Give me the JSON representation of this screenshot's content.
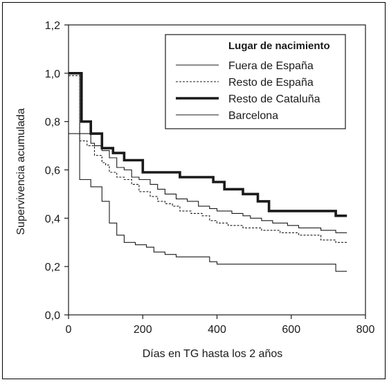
{
  "chart_data": {
    "type": "line",
    "subtype": "step",
    "xlabel": "Días en TG hasta los 2 años",
    "ylabel": "Supervivencia acumulada",
    "xlim": [
      0,
      800
    ],
    "ylim": [
      0,
      1.2
    ],
    "x_ticks": [
      0,
      200,
      400,
      600,
      800
    ],
    "x_tick_labels": [
      "0",
      "200",
      "400",
      "600",
      "800"
    ],
    "y_ticks": [
      0,
      0.2,
      0.4,
      0.6,
      0.8,
      1.0,
      1.2
    ],
    "y_tick_labels": [
      "0,0",
      "0,2",
      "0,4",
      "0,6",
      "0,8",
      "1,0",
      "1,2"
    ],
    "grid": false,
    "legend": {
      "title": "Lugar de nacimiento",
      "position": "top-right"
    },
    "series": [
      {
        "name": "Fuera de España",
        "style": "thin-solid",
        "color": "#1a1a1a",
        "points": [
          [
            0,
            1.0
          ],
          [
            30,
            1.0
          ],
          [
            30,
            0.75
          ],
          [
            60,
            0.75
          ],
          [
            60,
            0.71
          ],
          [
            70,
            0.71
          ],
          [
            70,
            0.7
          ],
          [
            90,
            0.7
          ],
          [
            90,
            0.68
          ],
          [
            110,
            0.68
          ],
          [
            110,
            0.65
          ],
          [
            130,
            0.65
          ],
          [
            130,
            0.61
          ],
          [
            150,
            0.61
          ],
          [
            150,
            0.6
          ],
          [
            170,
            0.6
          ],
          [
            170,
            0.57
          ],
          [
            190,
            0.57
          ],
          [
            190,
            0.56
          ],
          [
            220,
            0.56
          ],
          [
            220,
            0.54
          ],
          [
            240,
            0.54
          ],
          [
            240,
            0.52
          ],
          [
            260,
            0.52
          ],
          [
            260,
            0.5
          ],
          [
            290,
            0.5
          ],
          [
            290,
            0.48
          ],
          [
            320,
            0.48
          ],
          [
            320,
            0.47
          ],
          [
            350,
            0.47
          ],
          [
            350,
            0.45
          ],
          [
            380,
            0.45
          ],
          [
            380,
            0.44
          ],
          [
            400,
            0.44
          ],
          [
            400,
            0.43
          ],
          [
            440,
            0.43
          ],
          [
            440,
            0.42
          ],
          [
            470,
            0.42
          ],
          [
            470,
            0.41
          ],
          [
            490,
            0.41
          ],
          [
            490,
            0.4
          ],
          [
            520,
            0.4
          ],
          [
            520,
            0.39
          ],
          [
            550,
            0.39
          ],
          [
            550,
            0.38
          ],
          [
            590,
            0.38
          ],
          [
            590,
            0.37
          ],
          [
            620,
            0.37
          ],
          [
            620,
            0.36
          ],
          [
            680,
            0.36
          ],
          [
            680,
            0.35
          ],
          [
            720,
            0.35
          ],
          [
            720,
            0.34
          ],
          [
            750,
            0.34
          ]
        ]
      },
      {
        "name": "Resto de España",
        "style": "dashed",
        "color": "#1a1a1a",
        "points": [
          [
            0,
            0.99
          ],
          [
            30,
            0.99
          ],
          [
            30,
            0.72
          ],
          [
            50,
            0.72
          ],
          [
            50,
            0.7
          ],
          [
            70,
            0.7
          ],
          [
            70,
            0.66
          ],
          [
            90,
            0.66
          ],
          [
            90,
            0.63
          ],
          [
            100,
            0.63
          ],
          [
            100,
            0.62
          ],
          [
            110,
            0.62
          ],
          [
            110,
            0.59
          ],
          [
            130,
            0.59
          ],
          [
            130,
            0.57
          ],
          [
            150,
            0.57
          ],
          [
            150,
            0.56
          ],
          [
            170,
            0.56
          ],
          [
            170,
            0.54
          ],
          [
            190,
            0.54
          ],
          [
            190,
            0.51
          ],
          [
            220,
            0.51
          ],
          [
            220,
            0.49
          ],
          [
            240,
            0.49
          ],
          [
            240,
            0.47
          ],
          [
            260,
            0.47
          ],
          [
            260,
            0.46
          ],
          [
            280,
            0.46
          ],
          [
            280,
            0.45
          ],
          [
            300,
            0.45
          ],
          [
            300,
            0.43
          ],
          [
            330,
            0.43
          ],
          [
            330,
            0.42
          ],
          [
            360,
            0.42
          ],
          [
            360,
            0.41
          ],
          [
            380,
            0.41
          ],
          [
            380,
            0.39
          ],
          [
            400,
            0.39
          ],
          [
            400,
            0.38
          ],
          [
            430,
            0.38
          ],
          [
            430,
            0.37
          ],
          [
            470,
            0.37
          ],
          [
            470,
            0.36
          ],
          [
            520,
            0.36
          ],
          [
            520,
            0.35
          ],
          [
            570,
            0.35
          ],
          [
            570,
            0.34
          ],
          [
            620,
            0.34
          ],
          [
            620,
            0.33
          ],
          [
            680,
            0.33
          ],
          [
            680,
            0.31
          ],
          [
            720,
            0.31
          ],
          [
            720,
            0.3
          ],
          [
            750,
            0.3
          ]
        ]
      },
      {
        "name": "Resto de Cataluña",
        "style": "thick-solid",
        "color": "#1a1a1a",
        "points": [
          [
            0,
            1.0
          ],
          [
            35,
            1.0
          ],
          [
            35,
            0.8
          ],
          [
            60,
            0.8
          ],
          [
            60,
            0.75
          ],
          [
            90,
            0.75
          ],
          [
            90,
            0.69
          ],
          [
            120,
            0.69
          ],
          [
            120,
            0.67
          ],
          [
            150,
            0.67
          ],
          [
            150,
            0.64
          ],
          [
            200,
            0.64
          ],
          [
            200,
            0.59
          ],
          [
            300,
            0.59
          ],
          [
            300,
            0.57
          ],
          [
            390,
            0.57
          ],
          [
            390,
            0.55
          ],
          [
            420,
            0.55
          ],
          [
            420,
            0.52
          ],
          [
            470,
            0.52
          ],
          [
            470,
            0.5
          ],
          [
            510,
            0.5
          ],
          [
            510,
            0.47
          ],
          [
            540,
            0.47
          ],
          [
            540,
            0.43
          ],
          [
            720,
            0.43
          ],
          [
            720,
            0.41
          ],
          [
            750,
            0.41
          ]
        ]
      },
      {
        "name": "Barcelona",
        "style": "thin-solid",
        "color": "#1a1a1a",
        "points": [
          [
            0,
            0.75
          ],
          [
            30,
            0.75
          ],
          [
            30,
            0.56
          ],
          [
            60,
            0.56
          ],
          [
            60,
            0.53
          ],
          [
            90,
            0.53
          ],
          [
            90,
            0.47
          ],
          [
            110,
            0.47
          ],
          [
            110,
            0.38
          ],
          [
            130,
            0.38
          ],
          [
            130,
            0.33
          ],
          [
            150,
            0.33
          ],
          [
            150,
            0.3
          ],
          [
            180,
            0.3
          ],
          [
            180,
            0.29
          ],
          [
            210,
            0.29
          ],
          [
            210,
            0.28
          ],
          [
            230,
            0.28
          ],
          [
            230,
            0.26
          ],
          [
            260,
            0.26
          ],
          [
            260,
            0.25
          ],
          [
            290,
            0.25
          ],
          [
            290,
            0.24
          ],
          [
            380,
            0.24
          ],
          [
            380,
            0.22
          ],
          [
            400,
            0.22
          ],
          [
            400,
            0.21
          ],
          [
            720,
            0.21
          ],
          [
            720,
            0.18
          ],
          [
            750,
            0.18
          ]
        ]
      }
    ]
  }
}
